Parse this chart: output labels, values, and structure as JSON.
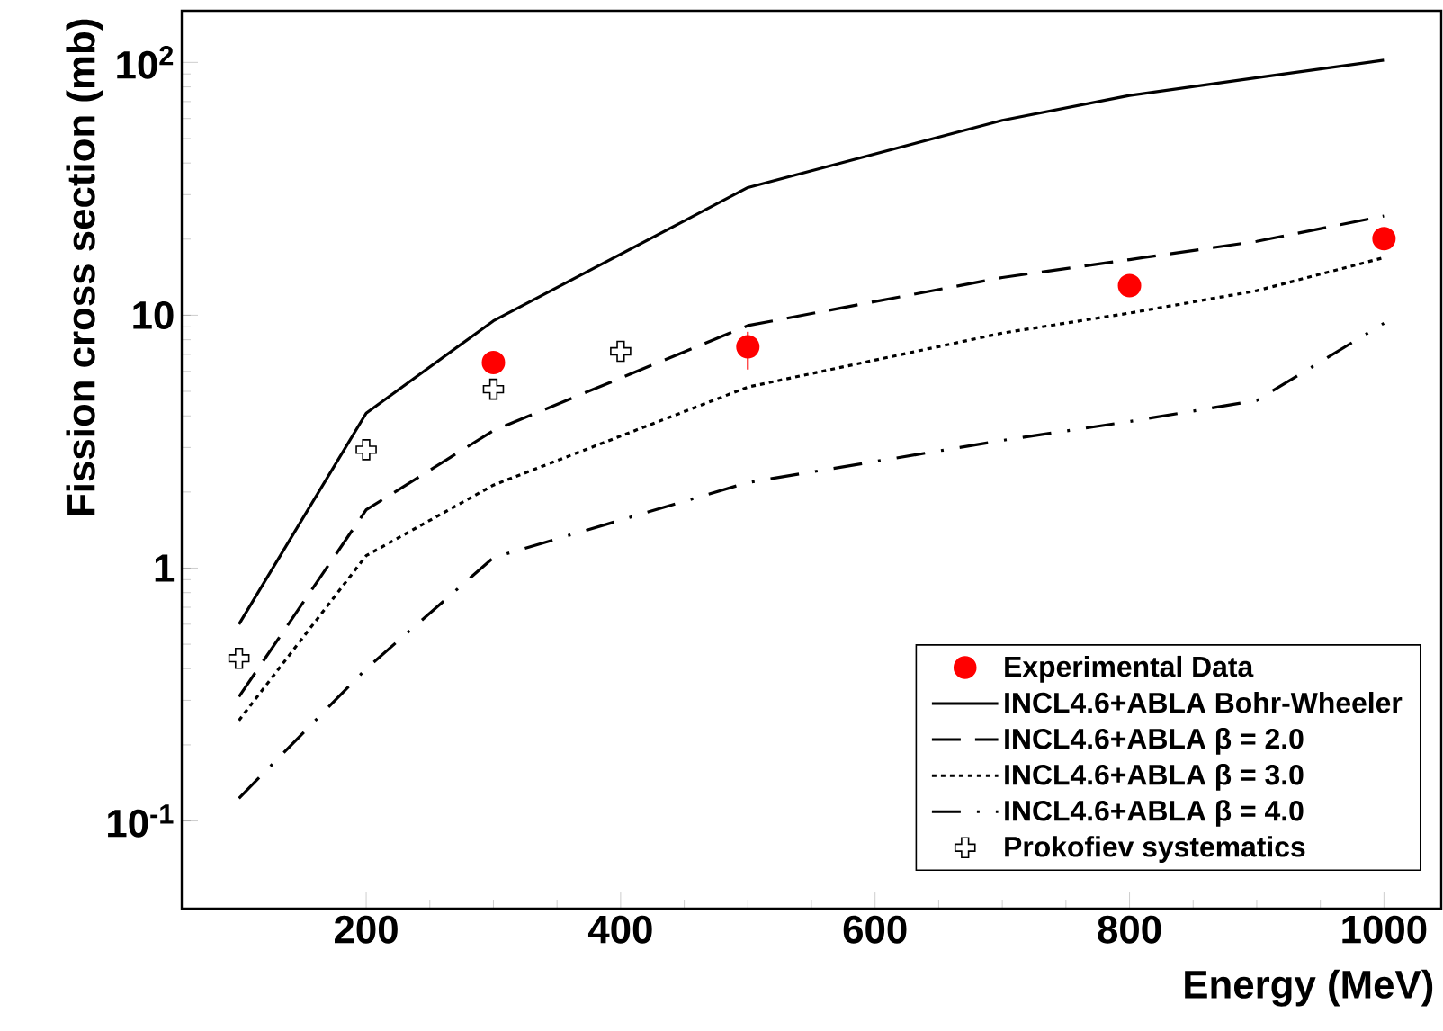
{
  "chart_data": {
    "type": "line",
    "xlabel": "Energy (MeV)",
    "ylabel": "Fission cross section (mb)",
    "log": "y",
    "legend": "bottom right",
    "xlim": [
      55,
      1045
    ],
    "xticks": [
      200,
      400,
      600,
      800,
      1000
    ],
    "ylim": [
      0.045,
      160
    ],
    "yticks": [
      {
        "value": 0.1,
        "label": "10$^{-1}$"
      },
      1,
      10,
      {
        "value": 100,
        "label": "10$^{2}$"
      }
    ],
    "series": [
      {
        "name": "Experimental Data",
        "type": "scatter",
        "marker": "circle",
        "color": "#ff0000",
        "x": [
          300,
          500,
          800,
          1000
        ],
        "values": [
          6.5,
          7.5,
          13.1,
          20.1
        ],
        "errors": [
          null,
          [
            6.1,
            8.6
          ],
          null,
          null
        ]
      },
      {
        "name": "INCL4.6+ABLA Bohr-Wheeler",
        "line_style": "solid",
        "color": "#000000",
        "x": [
          100,
          200,
          300,
          500,
          700,
          800,
          900,
          1000
        ],
        "values": [
          0.6,
          4.1,
          9.5,
          32,
          59,
          74,
          87,
          102
        ]
      },
      {
        "name": "INCL4.6+ABLA β = 2.0",
        "line_style": "dashed",
        "color": "#000000",
        "x": [
          100,
          200,
          300,
          500,
          700,
          800,
          900,
          1000
        ],
        "values": [
          0.31,
          1.7,
          3.5,
          9.1,
          14.1,
          16.6,
          19.6,
          24.7
        ]
      },
      {
        "name": "INCL4.6+ABLA β = 3.0",
        "line_style": "dotted",
        "color": "#000000",
        "x": [
          100,
          200,
          300,
          500,
          700,
          800,
          900,
          1000
        ],
        "values": [
          0.25,
          1.12,
          2.13,
          5.2,
          8.5,
          10.2,
          12.5,
          16.9
        ]
      },
      {
        "name": "INCL4.6+ABLA β = 4.0",
        "line_style": "dashdot",
        "color": "#000000",
        "x": [
          100,
          200,
          300,
          500,
          700,
          800,
          900,
          1000
        ],
        "values": [
          0.123,
          0.4,
          1.1,
          2.18,
          3.2,
          3.8,
          4.6,
          9.3
        ]
      },
      {
        "name": "Prokofiev systematics",
        "type": "scatter",
        "marker": "cross",
        "color": "#000000",
        "x": [
          100,
          200,
          300,
          400
        ],
        "values": [
          0.44,
          2.94,
          5.1,
          7.2
        ]
      }
    ]
  }
}
